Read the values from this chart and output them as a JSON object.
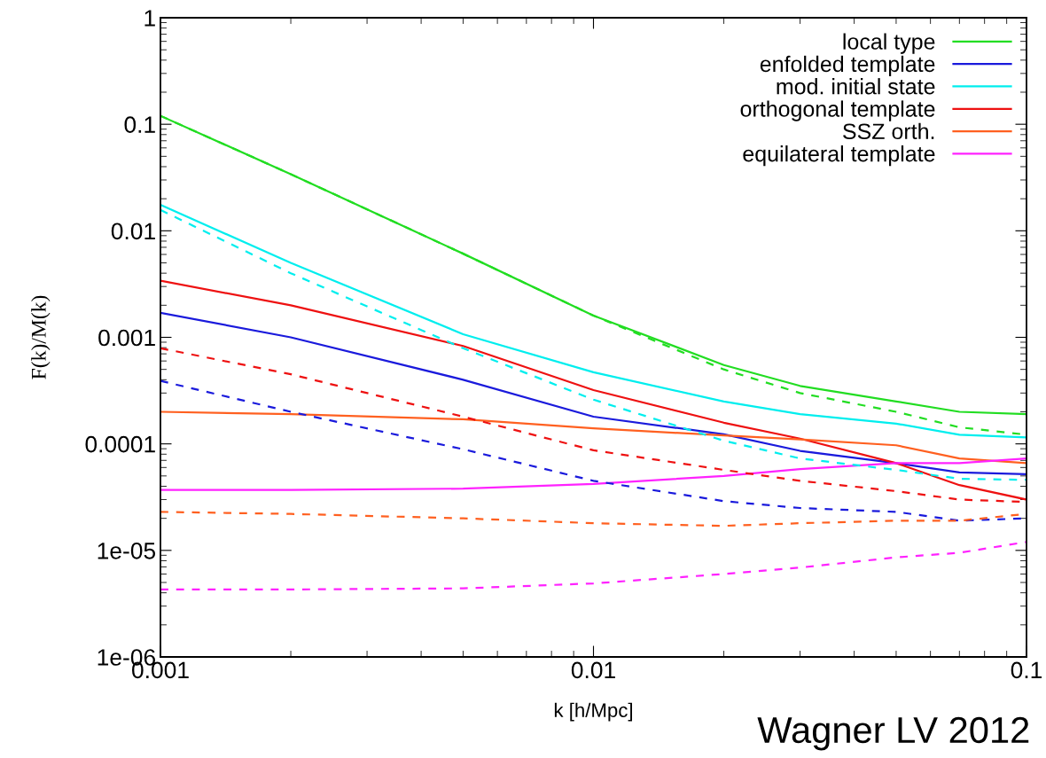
{
  "chart_data": {
    "type": "line",
    "xlabel": "k [h/Mpc]",
    "ylabel": "F(k)/M(k)",
    "log": "xy",
    "grid": false,
    "legend": "top right",
    "x": [
      0.001,
      0.002,
      0.005,
      0.01,
      0.02,
      0.03,
      0.05,
      0.07,
      0.1
    ],
    "xlim": [
      0.001,
      0.1
    ],
    "xticks": [
      0.001,
      0.01,
      0.1
    ],
    "ylim": [
      1e-06,
      1
    ],
    "yticks": [
      {
        "value": 1e-06,
        "label": "1e-06"
      },
      {
        "value": 1e-05,
        "label": "1e-05"
      },
      0.0001,
      0.001,
      0.01,
      0.1,
      1
    ],
    "series": [
      {
        "name": "local type",
        "color": "#22dd22",
        "line_style": "solid",
        "values": [
          0.12,
          0.034,
          0.0061,
          0.0016,
          0.00055,
          0.00035,
          0.00025,
          0.0002,
          0.00019
        ]
      },
      {
        "name": "enfolded template",
        "color": "#1a1adc",
        "line_style": "solid",
        "values": [
          0.0017,
          0.001,
          0.0004,
          0.00018,
          0.000123,
          8.6e-05,
          6.6e-05,
          5.4e-05,
          5.2e-05
        ]
      },
      {
        "name": "mod. initial state",
        "color": "#00eeee",
        "line_style": "solid",
        "values": [
          0.0175,
          0.005,
          0.00107,
          0.00047,
          0.00025,
          0.00019,
          0.000155,
          0.000122,
          0.000115
        ]
      },
      {
        "name": "orthogonal template",
        "color": "#ee1111",
        "line_style": "solid",
        "values": [
          0.0034,
          0.002,
          0.00083,
          0.00032,
          0.000158,
          0.000112,
          6.6e-05,
          4.1e-05,
          3e-05
        ]
      },
      {
        "name": "SSZ orth.",
        "color": "#ff6020",
        "line_style": "solid",
        "values": [
          0.0002,
          0.00019,
          0.00017,
          0.00014,
          0.00012,
          0.00011,
          9.7e-05,
          7.3e-05,
          6.6e-05
        ]
      },
      {
        "name": "equilateral template",
        "color": "#ff22ff",
        "line_style": "solid",
        "values": [
          3.7e-05,
          3.7e-05,
          3.8e-05,
          4.2e-05,
          5e-05,
          5.8e-05,
          6.6e-05,
          6.6e-05,
          7.3e-05
        ]
      },
      {
        "color": "#22dd22",
        "line_style": "dashed",
        "values": [
          0.12,
          0.034,
          0.0061,
          0.0016,
          0.0005,
          0.0003,
          0.0002,
          0.000143,
          0.000122
        ]
      },
      {
        "color": "#1a1adc",
        "line_style": "dashed",
        "values": [
          0.00039,
          0.0002,
          8.9e-05,
          4.5e-05,
          2.9e-05,
          2.5e-05,
          2.3e-05,
          1.9e-05,
          2e-05
        ]
      },
      {
        "color": "#00eeee",
        "line_style": "dashed",
        "values": [
          0.0157,
          0.004,
          0.00079,
          0.00026,
          0.000107,
          7.3e-05,
          5.7e-05,
          4.7e-05,
          4.6e-05
        ]
      },
      {
        "color": "#ee1111",
        "line_style": "dashed",
        "values": [
          0.00079,
          0.00045,
          0.00018,
          8.7e-05,
          5.7e-05,
          4.5e-05,
          3.6e-05,
          3e-05,
          2.85e-05
        ]
      },
      {
        "color": "#ff6020",
        "line_style": "dashed",
        "values": [
          2.3e-05,
          2.2e-05,
          2e-05,
          1.8e-05,
          1.7e-05,
          1.8e-05,
          1.9e-05,
          1.9e-05,
          2.2e-05
        ]
      },
      {
        "color": "#ff22ff",
        "line_style": "dashed",
        "values": [
          4.3e-06,
          4.3e-06,
          4.4e-06,
          4.9e-06,
          6e-06,
          6.9e-06,
          8.6e-06,
          9.5e-06,
          1.2e-05
        ]
      }
    ],
    "annotations": [
      "Wagner LV 2012"
    ]
  }
}
